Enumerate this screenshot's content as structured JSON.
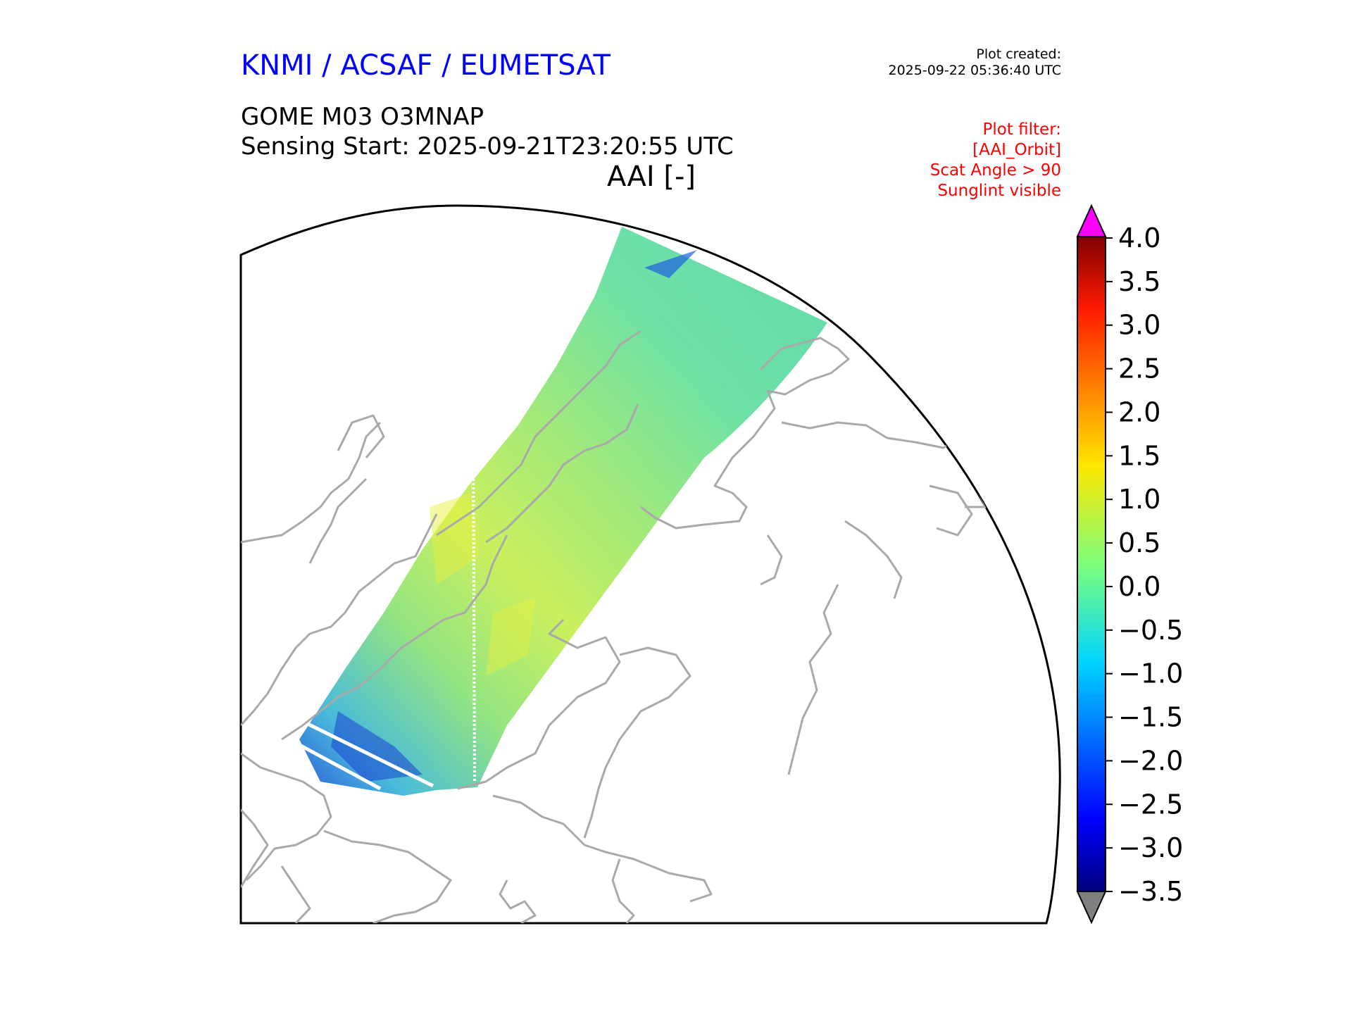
{
  "header": {
    "org_title": "KNMI / ACSAF / EUMETSAT",
    "created_label": "Plot created:",
    "created_value": "2025-09-22 05:36:40 UTC",
    "product_title": "GOME M03 O3MNAP",
    "sensing_start": "Sensing Start: 2025-09-21T23:20:55 UTC",
    "variable_title": "AAI [-]"
  },
  "plot_filter": {
    "lines": [
      "Plot filter:",
      "[AAI_Orbit]",
      "Scat Angle > 90",
      "Sunglint visible"
    ]
  },
  "map": {
    "projection": "polar stereographic (north)",
    "coastline_color": "#a9a9a9",
    "frame_color": "#000000"
  },
  "colorbar": {
    "ticks": [
      "4.0",
      "3.5",
      "3.0",
      "2.5",
      "2.0",
      "1.5",
      "1.0",
      "0.5",
      "0.0",
      "−0.5",
      "−1.0",
      "−1.5",
      "−2.0",
      "−2.5",
      "−3.0",
      "−3.5"
    ],
    "range": [
      -3.5,
      4.0
    ],
    "colormap": "jet",
    "over_color": "#ff00ff",
    "under_color": "#808080"
  },
  "colors": {
    "org_title": "#0000ff",
    "filter_text": "#ff0000"
  }
}
